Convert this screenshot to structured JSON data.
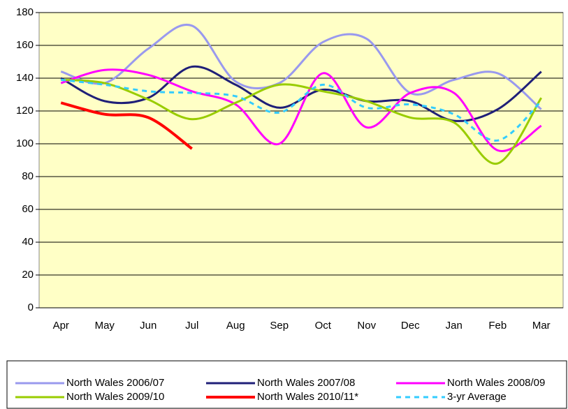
{
  "chart_data": {
    "type": "line",
    "categories": [
      "Apr",
      "May",
      "Jun",
      "Jul",
      "Aug",
      "Sep",
      "Oct",
      "Nov",
      "Dec",
      "Jan",
      "Feb",
      "Mar"
    ],
    "series": [
      {
        "name": "North Wales 2006/07",
        "color": "#9999ee",
        "values": [
          144,
          137,
          158,
          172,
          138,
          137,
          162,
          164,
          131,
          139,
          143,
          121
        ]
      },
      {
        "name": "North Wales 2007/08",
        "color": "#1f1f78",
        "values": [
          140,
          126,
          128,
          147,
          136,
          122,
          133,
          126,
          126,
          114,
          121,
          144
        ]
      },
      {
        "name": "North Wales 2008/09",
        "color": "#ff00ff",
        "values": [
          137,
          145,
          142,
          132,
          124,
          100,
          143,
          110,
          131,
          131,
          96,
          111
        ]
      },
      {
        "name": "North Wales 2009/10",
        "color": "#99cc00",
        "values": [
          139,
          137,
          127,
          115,
          125,
          136,
          132,
          126,
          116,
          113,
          88,
          128
        ]
      },
      {
        "name": "North Wales 2010/11*",
        "color": "#ff0000",
        "values": [
          125,
          118,
          116,
          97,
          null,
          null,
          null,
          null,
          null,
          null,
          null,
          null
        ]
      },
      {
        "name": "3-yr Average",
        "color": "#33ccff",
        "dashed": true,
        "values": [
          139,
          136,
          132,
          131,
          129,
          119,
          136,
          122,
          124,
          118,
          102,
          126
        ]
      }
    ],
    "ylim": [
      0,
      180
    ],
    "yticks": [
      0,
      20,
      40,
      60,
      80,
      100,
      120,
      140,
      160,
      180
    ],
    "grid": true,
    "legend": "bottom"
  }
}
